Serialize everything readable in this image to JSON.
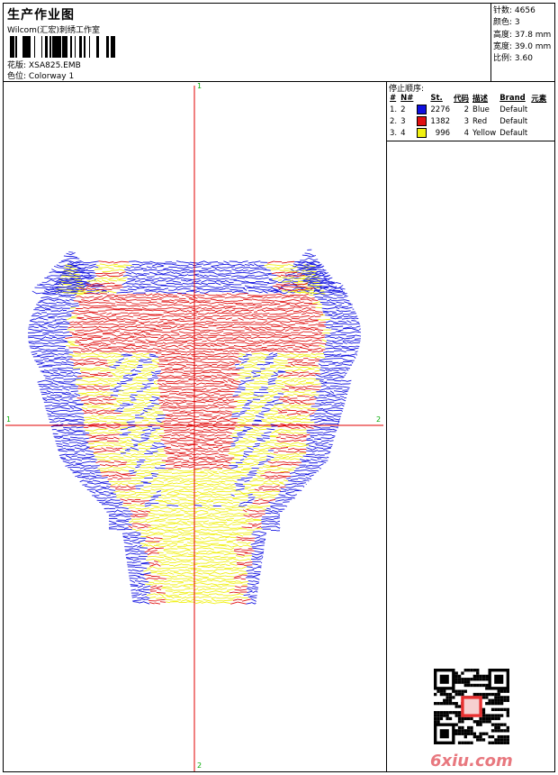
{
  "header": {
    "title": "生产作业图",
    "company": "Wilcom(汇宏)刺绣工作室",
    "design_label": "花版:",
    "design_value": "XSA825.EMB",
    "colorway_label": "色位:",
    "colorway_value": "Colorway 1"
  },
  "stats": {
    "stitches": "针数: 4656",
    "colors": "颜色: 3",
    "height": "高度: 37.8 mm",
    "width": "宽度: 39.0 mm",
    "scale": "比例: 3.60"
  },
  "stop_sequence": {
    "caption": "停止顺序:",
    "headers": [
      "#",
      "N#",
      "St.",
      "代码",
      "描述",
      "Brand",
      "元素"
    ],
    "rows": [
      {
        "num": "1.",
        "needle": "2",
        "color": "#1010e0",
        "stitches": "2276",
        "code": "2",
        "desc": "Blue",
        "brand": "Default"
      },
      {
        "num": "2.",
        "needle": "3",
        "color": "#e01010",
        "stitches": "1382",
        "code": "3",
        "desc": "Red",
        "brand": "Default"
      },
      {
        "num": "3.",
        "needle": "4",
        "color": "#f0f010",
        "stitches": "996",
        "code": "4",
        "desc": "Yellow",
        "brand": "Default"
      }
    ]
  },
  "axis_labels": {
    "top": "1",
    "bottom": "2",
    "left": "1",
    "right": "2"
  },
  "watermark": "6xiu.com",
  "colors": {
    "blue": "#1010e0",
    "red": "#e01010",
    "yellow": "#f0f010",
    "axis": "#e00000",
    "axis_label": "#00a000"
  }
}
